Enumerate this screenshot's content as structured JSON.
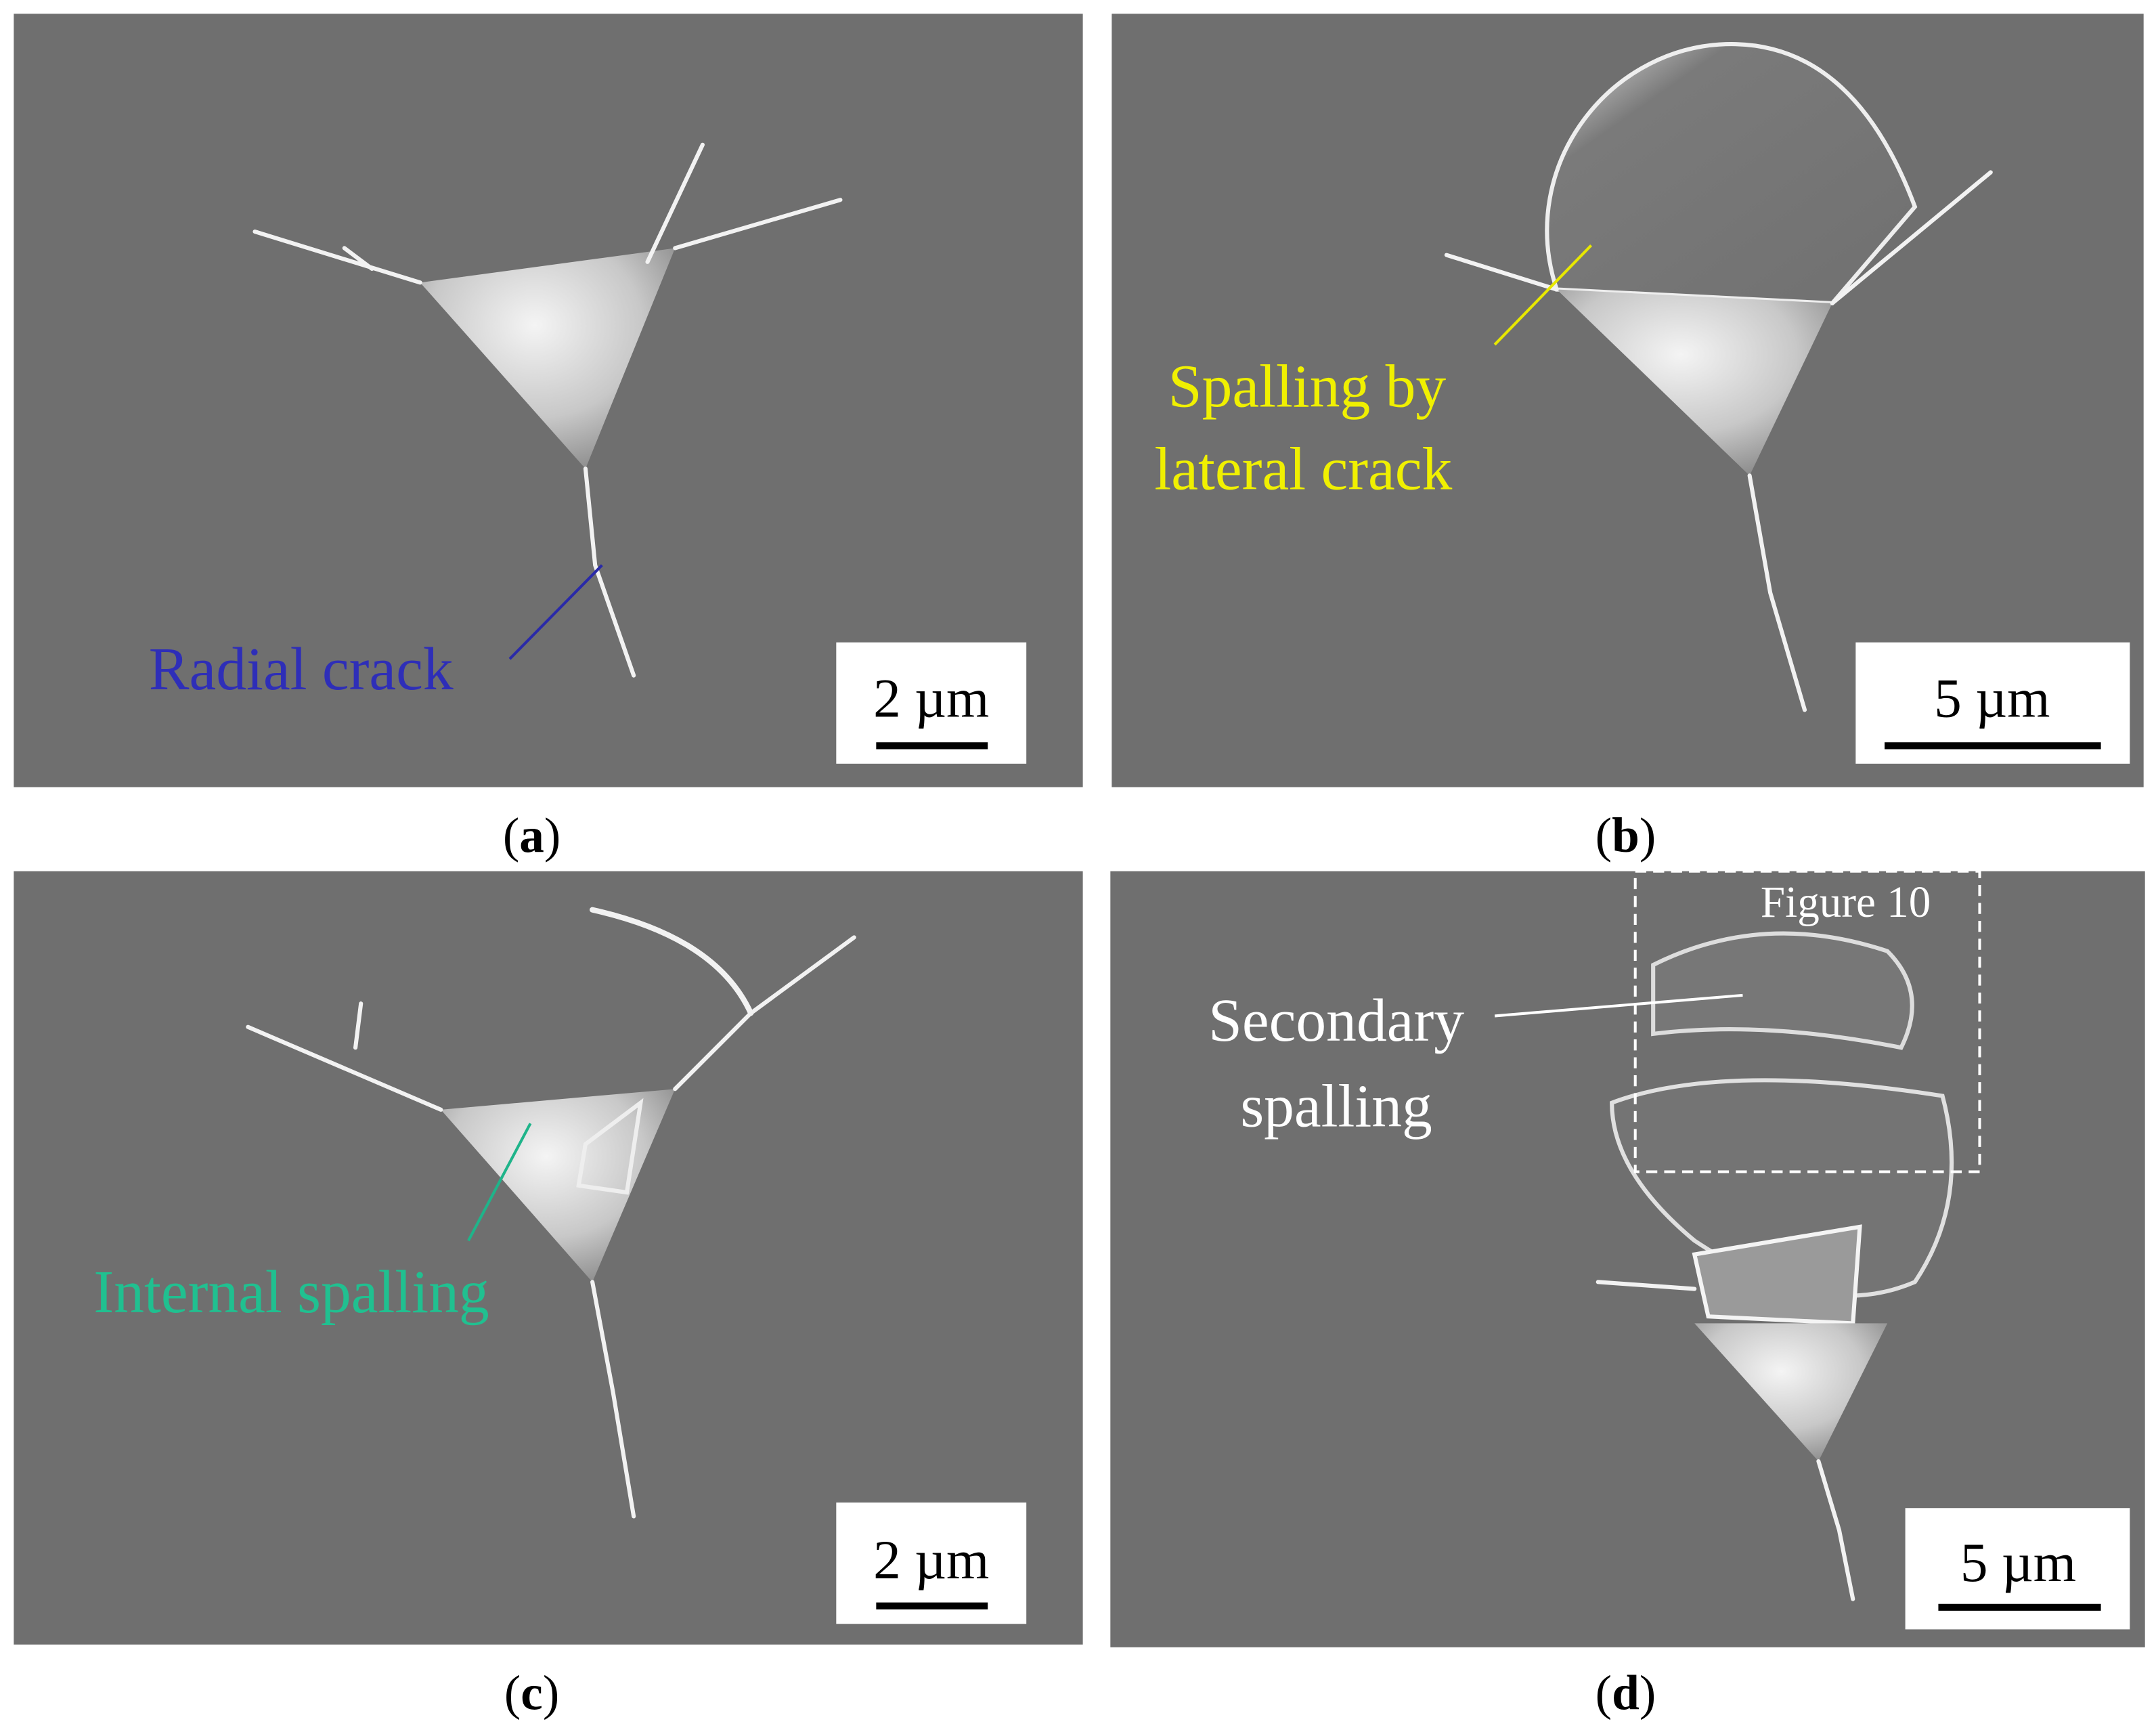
{
  "panels": [
    {
      "caption": [
        "(",
        "a",
        ")"
      ],
      "annotation": [
        "Radial crack"
      ],
      "scale_bar": "2 µm"
    },
    {
      "caption": [
        "(",
        "b",
        ")"
      ],
      "annotation": [
        "Spalling by",
        "lateral crack"
      ],
      "scale_bar": "5 µm"
    },
    {
      "caption": [
        "(",
        "c",
        ")"
      ],
      "annotation": [
        "Internal spalling"
      ],
      "scale_bar": "2 µm"
    },
    {
      "caption": [
        "(",
        "d",
        ")"
      ],
      "annotation": [
        "Secondary",
        "spalling"
      ],
      "inset_label": "Figure 10",
      "scale_bar": "5 µm"
    }
  ]
}
